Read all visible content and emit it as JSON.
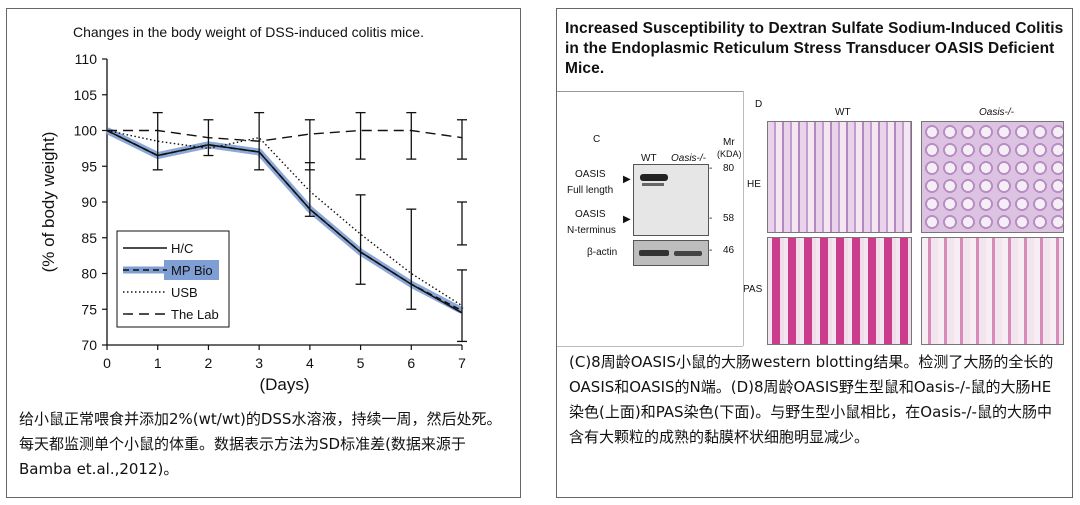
{
  "left_panel": {
    "chart_title": "Changes in the body weight of DSS-induced colitis mice.",
    "caption": "给小鼠正常喂食并添加2%(wt/wt)的DSS水溶液，持续一周，然后处死。每天都监测单个小鼠的体重。数据表示方法为SD标准差(数据来源于Bamba et.al.,2012)。"
  },
  "chart_data": {
    "type": "line",
    "title": "Changes in the body weight of DSS-induced colitis mice.",
    "xlabel": "(Days)",
    "ylabel": "(% of body weight)",
    "x": [
      0,
      1,
      2,
      3,
      4,
      5,
      6,
      7
    ],
    "xlim": [
      0,
      7
    ],
    "ylim": [
      70,
      110
    ],
    "yticks": [
      70,
      75,
      80,
      85,
      90,
      95,
      100,
      105,
      110
    ],
    "grid": false,
    "legend_position": "bottom-left",
    "series": [
      {
        "name": "H/C",
        "style": "solid",
        "values": [
          100,
          96.5,
          98,
          97,
          89,
          83,
          78.5,
          74.5
        ]
      },
      {
        "name": "MP Bio",
        "style": "highlight-dashed",
        "values": [
          100,
          96.5,
          98,
          97,
          89,
          83,
          78.5,
          74.8
        ]
      },
      {
        "name": "USB",
        "style": "dotted",
        "values": [
          100,
          98.5,
          97.5,
          99,
          91.5,
          85.5,
          80,
          75.5
        ]
      },
      {
        "name": "The Lab",
        "style": "dashed",
        "values": [
          100,
          100,
          99,
          98.5,
          99.5,
          100,
          100,
          99
        ]
      }
    ],
    "error_bars": [
      {
        "x": 1,
        "low": 94.5,
        "high": 102.5
      },
      {
        "x": 2,
        "low": 96.5,
        "high": 101.5
      },
      {
        "x": 3,
        "low": 94.5,
        "high": 102.5
      },
      {
        "x": 4,
        "low": 94.5,
        "high": 101.5
      },
      {
        "x": 4,
        "low": 88,
        "high": 95.5
      },
      {
        "x": 5,
        "low": 96,
        "high": 102.5
      },
      {
        "x": 5,
        "low": 78.5,
        "high": 91
      },
      {
        "x": 6,
        "low": 96,
        "high": 102.5
      },
      {
        "x": 6,
        "low": 75,
        "high": 89
      },
      {
        "x": 7,
        "low": 96,
        "high": 101.5
      },
      {
        "x": 7,
        "low": 84,
        "high": 90
      },
      {
        "x": 7,
        "low": 70.5,
        "high": 80.5
      }
    ],
    "colors": {
      "highlight": "#7f9fd4",
      "line": "#111111"
    }
  },
  "right_panel": {
    "paper_title": "Increased Susceptibility to Dextran Sulfate Sodium-Induced Colitis in the Endoplasmic Reticulum Stress Transducer OASIS Deficient Mice.",
    "figure": {
      "panel_c": "C",
      "panel_d": "D",
      "col_wt": "WT",
      "col_ko": "Oasis-/-",
      "mr_label": "Mr",
      "kda_label": "(KDA)",
      "band_full_1": "OASIS",
      "band_full_2": "Full length",
      "band_n_1": "OASIS",
      "band_n_2": "N-terminus",
      "actin": "β-actin",
      "mw_80": "80",
      "mw_58": "58",
      "mw_46": "46",
      "row_he": "HE",
      "row_pas": "PAS"
    },
    "caption": "(C)8周龄OASIS小鼠的大肠western blotting结果。检测了大肠的全长的OASIS和OASIS的N端。(D)8周龄OASIS野生型鼠和Oasis-/-鼠的大肠HE染色(上面)和PAS染色(下面)。与野生型小鼠相比，在Oasis-/-鼠的大肠中含有大颗粒的成熟的黏膜杯状细胞明显减少。"
  }
}
